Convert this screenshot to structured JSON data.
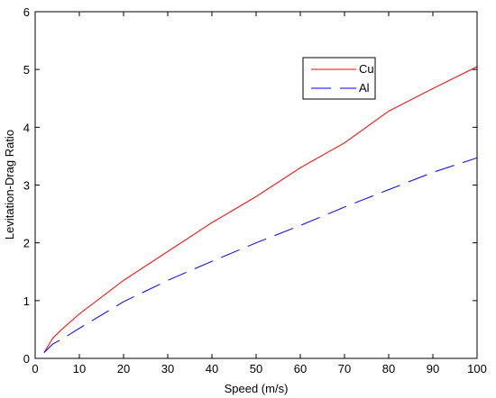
{
  "chart_data": {
    "type": "line",
    "xlabel": "Speed (m/s)",
    "ylabel": "Levitation-Drag Ratio",
    "xlim": [
      0,
      100
    ],
    "ylim": [
      0,
      6
    ],
    "xticks": [
      0,
      10,
      20,
      30,
      40,
      50,
      60,
      70,
      80,
      90,
      100
    ],
    "yticks": [
      0,
      1,
      2,
      3,
      4,
      5,
      6
    ],
    "grid": false,
    "legend_position": "upper-right",
    "series": [
      {
        "name": "Cu",
        "color": "#ff0000",
        "dash": "solid",
        "x": [
          2,
          4,
          6,
          10,
          20,
          30,
          40,
          50,
          60,
          70,
          80,
          90,
          100
        ],
        "y": [
          0.1,
          0.35,
          0.5,
          0.77,
          1.35,
          1.85,
          2.35,
          2.8,
          3.3,
          3.73,
          4.28,
          4.67,
          5.05
        ]
      },
      {
        "name": "Al",
        "color": "#0000ff",
        "dash": "dashed",
        "x": [
          2,
          4,
          6,
          10,
          20,
          30,
          40,
          50,
          60,
          70,
          80,
          90,
          100
        ],
        "y": [
          0.1,
          0.25,
          0.33,
          0.52,
          0.98,
          1.35,
          1.68,
          2.0,
          2.3,
          2.62,
          2.92,
          3.22,
          3.47
        ]
      }
    ]
  }
}
